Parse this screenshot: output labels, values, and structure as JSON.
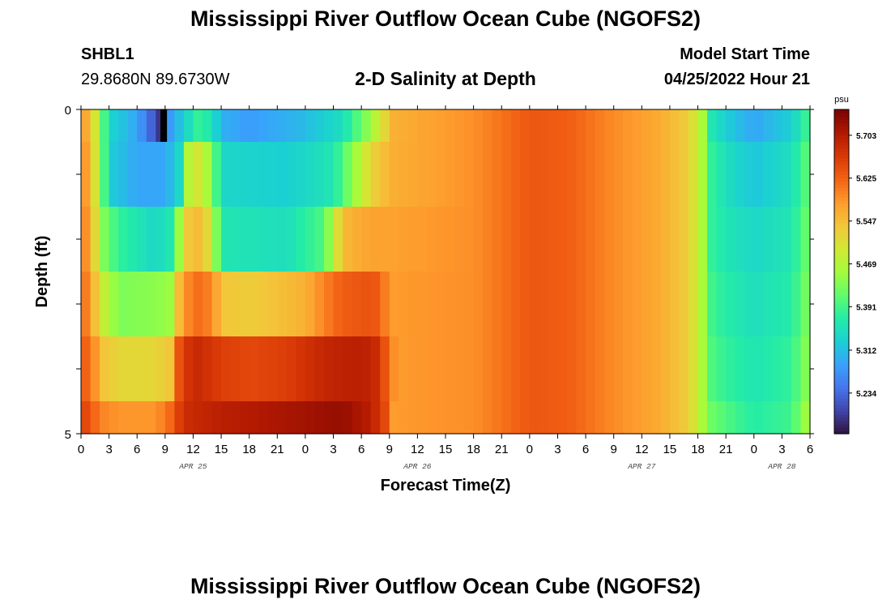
{
  "header": {
    "title": "Mississippi River Outflow Ocean Cube (NGOFS2)",
    "station": "SHBL1",
    "location": "29.8680N  89.6730W",
    "subtitle": "2-D Salinity at Depth",
    "model_start_label": "Model Start Time",
    "model_start_value": "04/25/2022 Hour 21"
  },
  "footer": {
    "title_repeat": "Mississippi River Outflow Ocean Cube (NGOFS2)"
  },
  "colors": {
    "colormap": [
      "#30123b",
      "#4145ab",
      "#4675ed",
      "#39a2fc",
      "#1bcfd4",
      "#24eca6",
      "#61fc6c",
      "#a4fc3b",
      "#d1e834",
      "#f3c63a",
      "#fe9b2d",
      "#f36315",
      "#d93806",
      "#b11901",
      "#7a0402"
    ]
  },
  "chart_data": {
    "type": "heatmap",
    "xlabel": "Forecast Time(Z)",
    "ylabel": "Depth (ft)",
    "x_tick_labels": [
      "0",
      "3",
      "6",
      "9",
      "12",
      "15",
      "18",
      "21",
      "0",
      "3",
      "6",
      "9",
      "12",
      "15",
      "18",
      "21",
      "0",
      "3",
      "6",
      "9",
      "12",
      "15",
      "18",
      "21",
      "0",
      "3",
      "6"
    ],
    "x_tick_hours": [
      0,
      3,
      6,
      9,
      12,
      15,
      18,
      21,
      24,
      27,
      30,
      33,
      36,
      39,
      42,
      45,
      48,
      51,
      54,
      57,
      60,
      63,
      66,
      69,
      72,
      75,
      78
    ],
    "x_range_hours": [
      0,
      78
    ],
    "date_labels": [
      {
        "label": "APR 25",
        "hour": 12
      },
      {
        "label": "APR 26",
        "hour": 36
      },
      {
        "label": "APR 27",
        "hour": 60
      },
      {
        "label": "APR 28",
        "hour": 75
      }
    ],
    "y_tick_labels": [
      {
        "label": "0",
        "depth": 0
      },
      {
        "label": "5",
        "depth": 5
      }
    ],
    "y_range": [
      0,
      5
    ],
    "depth_levels": [
      0,
      1,
      2,
      3,
      4,
      5
    ],
    "colorbar": {
      "unit": "psu",
      "range": [
        5.16,
        5.75
      ],
      "tick_labels": [
        "5.703",
        "5.625",
        "5.547",
        "5.469",
        "5.391",
        "5.312",
        "5.234"
      ],
      "tick_values": [
        5.703,
        5.625,
        5.547,
        5.469,
        5.391,
        5.312,
        5.234
      ]
    },
    "series": [
      {
        "band": "0-0.5",
        "points": [
          [
            0,
            5.6
          ],
          [
            1.5,
            5.5
          ],
          [
            3,
            5.34
          ],
          [
            6,
            5.29
          ],
          [
            8.5,
            5.19
          ],
          [
            9.5,
            5.28
          ],
          [
            11,
            5.33
          ],
          [
            12.5,
            5.38
          ],
          [
            14,
            5.36
          ],
          [
            15,
            5.3
          ],
          [
            18,
            5.28
          ],
          [
            24,
            5.31
          ],
          [
            28,
            5.35
          ],
          [
            31,
            5.45
          ],
          [
            32.5,
            5.52
          ],
          [
            33.5,
            5.56
          ],
          [
            36,
            5.57
          ],
          [
            42,
            5.59
          ],
          [
            46,
            5.62
          ],
          [
            48,
            5.635
          ],
          [
            52,
            5.63
          ],
          [
            56,
            5.6
          ],
          [
            62,
            5.565
          ],
          [
            65,
            5.53
          ],
          [
            66.5,
            5.46
          ],
          [
            67.5,
            5.36
          ],
          [
            69,
            5.33
          ],
          [
            72,
            5.29
          ],
          [
            76,
            5.33
          ],
          [
            78,
            5.4
          ]
        ]
      },
      {
        "band": "0.5-1.5",
        "points": [
          [
            0,
            5.61
          ],
          [
            1,
            5.55
          ],
          [
            2,
            5.46
          ],
          [
            3,
            5.33
          ],
          [
            6,
            5.29
          ],
          [
            9,
            5.29
          ],
          [
            10.5,
            5.34
          ],
          [
            11.5,
            5.47
          ],
          [
            12.5,
            5.5
          ],
          [
            14,
            5.44
          ],
          [
            15,
            5.34
          ],
          [
            22,
            5.33
          ],
          [
            27,
            5.36
          ],
          [
            29,
            5.44
          ],
          [
            31,
            5.52
          ],
          [
            33,
            5.56
          ],
          [
            36,
            5.57
          ],
          [
            42,
            5.59
          ],
          [
            46,
            5.62
          ],
          [
            48,
            5.635
          ],
          [
            52,
            5.63
          ],
          [
            56,
            5.6
          ],
          [
            62,
            5.565
          ],
          [
            65,
            5.53
          ],
          [
            66.5,
            5.46
          ],
          [
            67.5,
            5.38
          ],
          [
            69,
            5.35
          ],
          [
            72,
            5.32
          ],
          [
            76,
            5.35
          ],
          [
            78,
            5.42
          ]
        ]
      },
      {
        "band": "1.5-2.5",
        "points": [
          [
            0,
            5.62
          ],
          [
            1,
            5.56
          ],
          [
            2.5,
            5.43
          ],
          [
            4,
            5.38
          ],
          [
            8,
            5.34
          ],
          [
            10,
            5.37
          ],
          [
            11,
            5.53
          ],
          [
            12.5,
            5.55
          ],
          [
            14,
            5.5
          ],
          [
            15,
            5.36
          ],
          [
            22,
            5.35
          ],
          [
            26,
            5.4
          ],
          [
            28,
            5.55
          ],
          [
            31,
            5.575
          ],
          [
            33,
            5.575
          ],
          [
            36,
            5.58
          ],
          [
            42,
            5.59
          ],
          [
            46,
            5.62
          ],
          [
            48,
            5.635
          ],
          [
            52,
            5.63
          ],
          [
            56,
            5.6
          ],
          [
            62,
            5.565
          ],
          [
            65,
            5.53
          ],
          [
            66.5,
            5.46
          ],
          [
            67.5,
            5.38
          ],
          [
            69,
            5.36
          ],
          [
            72,
            5.34
          ],
          [
            76,
            5.36
          ],
          [
            78,
            5.43
          ]
        ]
      },
      {
        "band": "2.5-3.5",
        "points": [
          [
            0,
            5.62
          ],
          [
            1,
            5.59
          ],
          [
            2,
            5.5
          ],
          [
            4,
            5.43
          ],
          [
            8,
            5.44
          ],
          [
            9.5,
            5.45
          ],
          [
            10.5,
            5.55
          ],
          [
            12,
            5.62
          ],
          [
            14,
            5.6
          ],
          [
            15,
            5.54
          ],
          [
            18,
            5.53
          ],
          [
            24,
            5.56
          ],
          [
            26,
            5.6
          ],
          [
            28,
            5.63
          ],
          [
            31,
            5.64
          ],
          [
            32,
            5.63
          ],
          [
            33,
            5.58
          ],
          [
            36,
            5.585
          ],
          [
            42,
            5.59
          ],
          [
            46,
            5.62
          ],
          [
            48,
            5.635
          ],
          [
            52,
            5.63
          ],
          [
            56,
            5.6
          ],
          [
            62,
            5.565
          ],
          [
            65,
            5.53
          ],
          [
            66.5,
            5.46
          ],
          [
            67.5,
            5.39
          ],
          [
            69,
            5.37
          ],
          [
            72,
            5.35
          ],
          [
            76,
            5.37
          ],
          [
            78,
            5.44
          ]
        ]
      },
      {
        "band": "3.5-4.5",
        "points": [
          [
            0,
            5.64
          ],
          [
            1,
            5.61
          ],
          [
            2.5,
            5.54
          ],
          [
            4,
            5.52
          ],
          [
            8,
            5.52
          ],
          [
            9.5,
            5.54
          ],
          [
            10.5,
            5.64
          ],
          [
            12,
            5.69
          ],
          [
            15,
            5.66
          ],
          [
            18,
            5.65
          ],
          [
            22,
            5.66
          ],
          [
            26,
            5.69
          ],
          [
            30,
            5.7
          ],
          [
            32,
            5.68
          ],
          [
            33,
            5.6
          ],
          [
            34,
            5.58
          ],
          [
            36,
            5.585
          ],
          [
            42,
            5.59
          ],
          [
            46,
            5.62
          ],
          [
            48,
            5.635
          ],
          [
            52,
            5.63
          ],
          [
            56,
            5.6
          ],
          [
            62,
            5.565
          ],
          [
            65,
            5.53
          ],
          [
            66.5,
            5.46
          ],
          [
            67.5,
            5.4
          ],
          [
            69,
            5.38
          ],
          [
            72,
            5.36
          ],
          [
            76,
            5.38
          ],
          [
            78,
            5.45
          ]
        ]
      },
      {
        "band": "4.5-5",
        "points": [
          [
            0,
            5.66
          ],
          [
            1,
            5.64
          ],
          [
            2,
            5.6
          ],
          [
            4,
            5.585
          ],
          [
            8,
            5.585
          ],
          [
            9.5,
            5.62
          ],
          [
            11,
            5.68
          ],
          [
            15,
            5.7
          ],
          [
            20,
            5.71
          ],
          [
            24,
            5.72
          ],
          [
            28,
            5.73
          ],
          [
            31,
            5.7
          ],
          [
            32.5,
            5.65
          ],
          [
            33.5,
            5.58
          ],
          [
            36,
            5.585
          ],
          [
            42,
            5.59
          ],
          [
            46,
            5.62
          ],
          [
            48,
            5.635
          ],
          [
            52,
            5.63
          ],
          [
            56,
            5.6
          ],
          [
            62,
            5.565
          ],
          [
            65,
            5.53
          ],
          [
            66.5,
            5.46
          ],
          [
            67.5,
            5.42
          ],
          [
            69,
            5.4
          ],
          [
            72,
            5.37
          ],
          [
            76,
            5.39
          ],
          [
            78,
            5.47
          ]
        ]
      }
    ],
    "missing_cell": {
      "band": "0-0.5",
      "hour_range": [
        8.5,
        9.2
      ]
    },
    "grid": false
  }
}
